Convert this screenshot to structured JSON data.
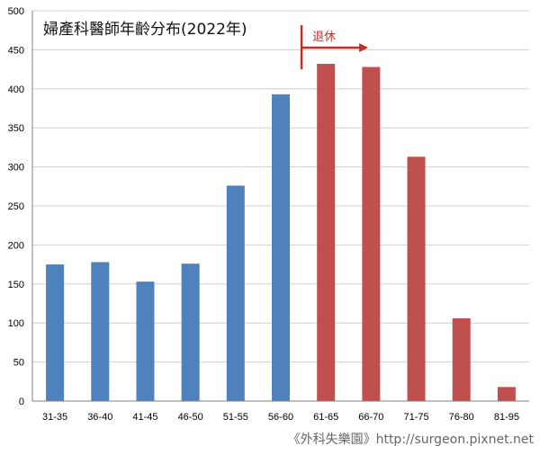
{
  "chart_data": {
    "type": "bar",
    "title": "婦產科醫師年齡分布(2022年)",
    "xlabel": "",
    "ylabel": "",
    "ylim": [
      0,
      500
    ],
    "yticks": [
      0,
      50,
      100,
      150,
      200,
      250,
      300,
      350,
      400,
      450,
      500
    ],
    "grid": true,
    "categories": [
      "31-35",
      "36-40",
      "41-45",
      "46-50",
      "51-55",
      "56-60",
      "61-65",
      "66-70",
      "71-75",
      "76-80",
      "81-95"
    ],
    "values": [
      175,
      178,
      153,
      176,
      276,
      393,
      432,
      428,
      313,
      106,
      18
    ],
    "colors": {
      "under_60": "#4f81bd",
      "retired": "#c0504d",
      "grid": "#d0d0d0",
      "annotation": "#c0302a"
    },
    "annotation": {
      "label": "退休",
      "starts_at_category": "61-65"
    }
  },
  "watermark": "《外科失樂園》http://surgeon.pixnet.net"
}
